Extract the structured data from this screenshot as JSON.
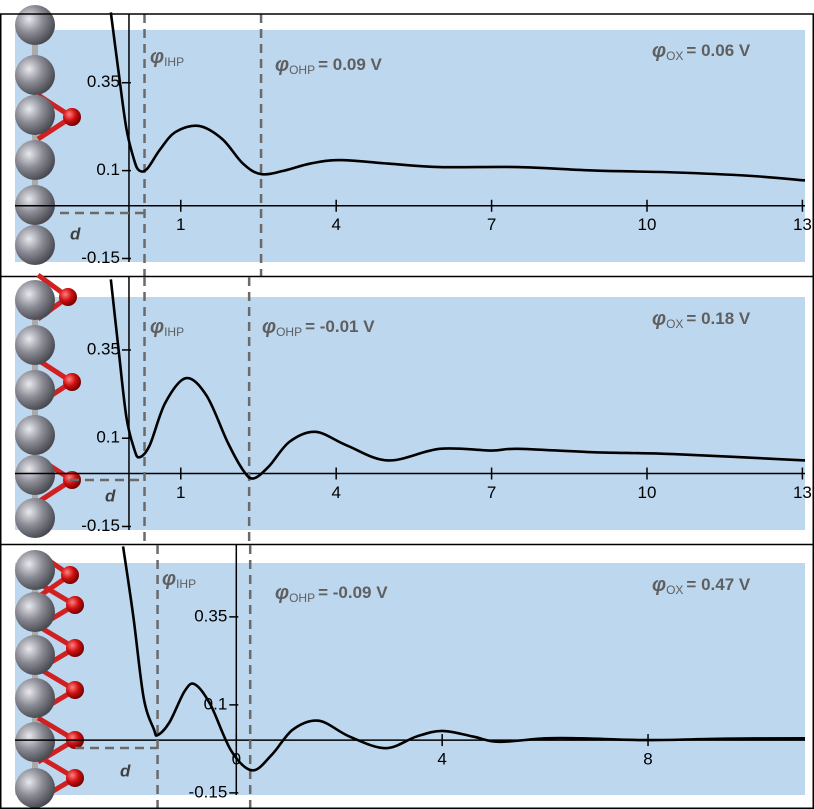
{
  "chart_data": [
    {
      "type": "line",
      "xlim": [
        -2.2,
        13.05
      ],
      "ylim": [
        -0.16,
        0.5
      ],
      "xticks": [
        1,
        4,
        7,
        10,
        13
      ],
      "yticks": [
        0.35,
        0.1,
        -0.15
      ],
      "vlines": [
        0.3,
        2.55
      ],
      "annotations": {
        "phi_ihp": "φ",
        "ihp": "IHP",
        "phi_ohp": "φ",
        "ohp": "OHP",
        "ohp_value": "= 0.09 V",
        "phi_ox": "φ",
        "ox": "OX",
        "ox_value": "= 0.06 V",
        "d": "d"
      },
      "series": [
        {
          "color": "#000000",
          "x": [
            -0.35,
            -0.2,
            -0.05,
            0.1,
            0.2,
            0.35,
            0.6,
            0.9,
            1.35,
            1.8,
            2.2,
            2.55,
            3.0,
            3.5,
            4.06,
            5,
            6,
            7.5,
            9,
            10.5,
            12,
            13.05
          ],
          "values": [
            0.55,
            0.38,
            0.22,
            0.13,
            0.1,
            0.105,
            0.16,
            0.21,
            0.227,
            0.19,
            0.12,
            0.09,
            0.1,
            0.12,
            0.13,
            0.12,
            0.11,
            0.11,
            0.1,
            0.095,
            0.085,
            0.072
          ]
        }
      ]
    },
    {
      "type": "line",
      "xlim": [
        -2.2,
        13.05
      ],
      "ylim": [
        -0.16,
        0.5
      ],
      "xticks": [
        1,
        4,
        7,
        10,
        13
      ],
      "yticks": [
        0.35,
        0.1,
        -0.15
      ],
      "vlines": [
        0.3,
        2.32
      ],
      "annotations": {
        "phi_ihp": "φ",
        "ihp": "IHP",
        "phi_ohp": "φ",
        "ohp": "OHP",
        "ohp_value": "= -0.01 V",
        "phi_ox": "φ",
        "ox": "OX",
        "ox_value": "= 0.18 V",
        "d": "d"
      },
      "series": [
        {
          "color": "#000000",
          "x": [
            -0.35,
            -0.2,
            -0.05,
            0.1,
            0.2,
            0.4,
            0.7,
            1.1,
            1.5,
            1.9,
            2.2,
            2.4,
            2.7,
            3.1,
            3.6,
            4.2,
            5,
            6,
            7,
            7.5,
            9,
            10.5,
            13.05
          ],
          "values": [
            0.55,
            0.35,
            0.16,
            0.07,
            0.046,
            0.08,
            0.2,
            0.27,
            0.22,
            0.09,
            0.01,
            -0.014,
            0.02,
            0.09,
            0.118,
            0.08,
            0.037,
            0.07,
            0.065,
            0.07,
            0.06,
            0.055,
            0.037
          ]
        }
      ]
    },
    {
      "type": "line",
      "xlim": [
        -4.3,
        11.05
      ],
      "ylim": [
        -0.156,
        0.503
      ],
      "xticks": [
        0,
        4,
        8
      ],
      "yticks": [
        0.35,
        0.1,
        -0.15
      ],
      "vlines": [
        -1.53,
        0.27
      ],
      "annotations": {
        "phi_ihp": "φ",
        "ihp": "IHP",
        "phi_ohp": "φ",
        "ohp": "OHP",
        "ohp_value": "= -0.09 V",
        "phi_ox": "φ",
        "ox": "OX",
        "ox_value": "= 0.47 V",
        "d": "d"
      },
      "series": [
        {
          "color": "#000000",
          "x": [
            -2.2,
            -2.0,
            -1.8,
            -1.6,
            -1.53,
            -1.3,
            -1.0,
            -0.8,
            -0.5,
            -0.1,
            0.31,
            0.7,
            1.1,
            1.6,
            2.2,
            2.9,
            3.5,
            4,
            4.6,
            5.1,
            6,
            6.7,
            8,
            9.5,
            11.05
          ],
          "values": [
            0.55,
            0.35,
            0.12,
            0.03,
            0.014,
            0.05,
            0.14,
            0.158,
            0.1,
            -0.03,
            -0.086,
            -0.04,
            0.03,
            0.055,
            0.01,
            -0.023,
            0.01,
            0.026,
            0.01,
            -0.005,
            0.005,
            0.005,
            0,
            0.004,
            0.005
          ]
        }
      ]
    }
  ]
}
